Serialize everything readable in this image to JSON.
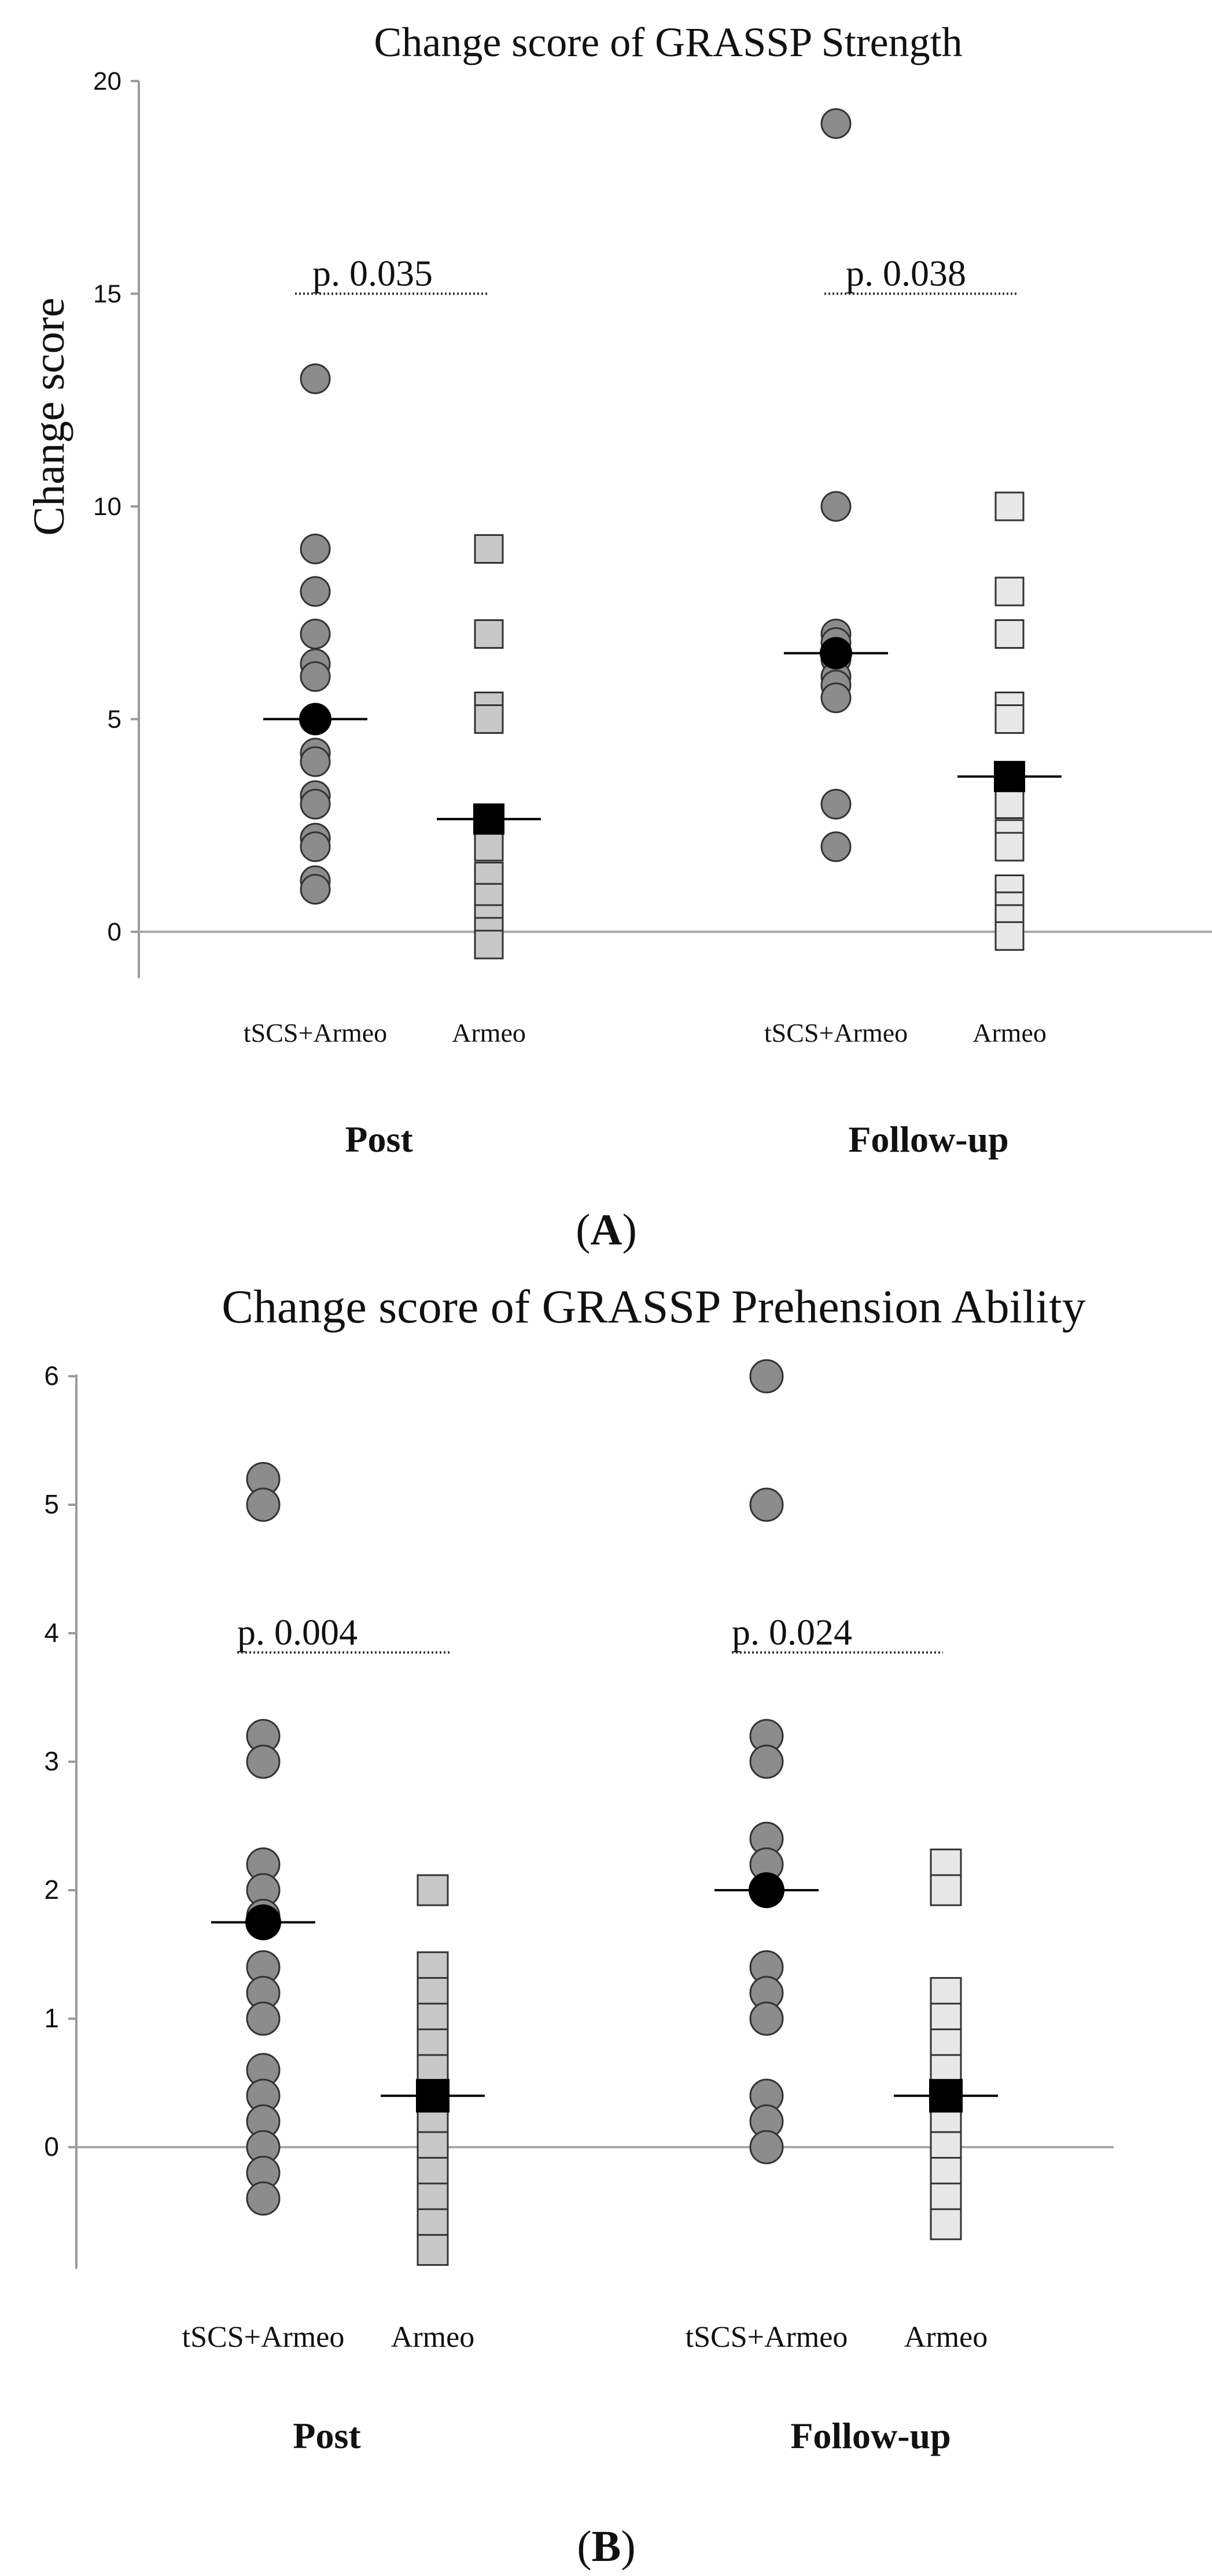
{
  "figure": {
    "panel_a_label": "(A)",
    "panel_b_label": "(B)"
  },
  "chart_data": [
    {
      "type": "scatter",
      "panel": "A",
      "title": "Change score of GRASSP Strength",
      "ylabel": "Change score",
      "xlabel": "",
      "ylim": [
        -1,
        20
      ],
      "yticks": [
        0,
        5,
        10,
        15,
        20
      ],
      "group_labels": [
        "Post",
        "Follow-up"
      ],
      "category_labels": [
        "tSCS+Armeo",
        "Armeo",
        "tSCS+Armeo",
        "Armeo"
      ],
      "annotations": [
        {
          "text": "p. 0.035",
          "group": "Post",
          "y": 15
        },
        {
          "text": "p. 0.038",
          "group": "Follow-up",
          "y": 15
        }
      ],
      "series": [
        {
          "name": "tSCS+Armeo (Post)",
          "marker": "circle",
          "color": "#8c8c8c",
          "category": 0,
          "values": [
            13,
            9,
            8,
            7,
            6.3,
            6,
            5,
            4.2,
            4,
            3.2,
            3,
            2.2,
            2,
            1.2,
            1
          ]
        },
        {
          "name": "Armeo (Post)",
          "marker": "square",
          "color": "#c8c8c8",
          "category": 1,
          "values": [
            9,
            7,
            5.3,
            5,
            2.3,
            2,
            1.3,
            0.8,
            0.3,
            0,
            -0.3
          ]
        },
        {
          "name": "tSCS+Armeo (Follow-up)",
          "marker": "circle",
          "color": "#8c8c8c",
          "category": 2,
          "values": [
            19,
            10,
            7,
            6.8,
            6.4,
            6,
            5.8,
            5.5,
            3,
            2
          ]
        },
        {
          "name": "Armeo (Follow-up)",
          "marker": "square",
          "color": "#e8e8e8",
          "category": 3,
          "values": [
            10,
            8,
            7,
            5.3,
            5,
            3,
            2.3,
            2,
            1,
            0.6,
            0.3,
            -0.1
          ]
        }
      ],
      "means": [
        {
          "category": 0,
          "value": 5.0,
          "marker": "circle"
        },
        {
          "category": 1,
          "value": 2.65,
          "marker": "square"
        },
        {
          "category": 2,
          "value": 6.55,
          "marker": "circle"
        },
        {
          "category": 3,
          "value": 3.65,
          "marker": "square"
        }
      ]
    },
    {
      "type": "scatter",
      "panel": "B",
      "title": "Change score of GRASSP Prehension Ability",
      "ylabel": "",
      "xlabel": "",
      "ylim": [
        -0.95,
        6
      ],
      "yticks": [
        0,
        1,
        2,
        3,
        4,
        5,
        6
      ],
      "group_labels": [
        "Post",
        "Follow-up"
      ],
      "category_labels": [
        "tSCS+Armeo",
        "Armeo",
        "tSCS+Armeo",
        "Armeo"
      ],
      "annotations": [
        {
          "text": "p. 0.004",
          "group": "Post",
          "y": 3.85
        },
        {
          "text": "p. 0.024",
          "group": "Follow-up",
          "y": 3.85
        }
      ],
      "series": [
        {
          "name": "tSCS+Armeo (Post)",
          "marker": "circle",
          "color": "#8c8c8c",
          "category": 0,
          "values": [
            5.2,
            5,
            3.2,
            3,
            2.2,
            2,
            1.8,
            1.4,
            1.2,
            1,
            0.6,
            0.4,
            0.2,
            0,
            -0.2,
            -0.4
          ]
        },
        {
          "name": "Armeo (Post)",
          "marker": "square",
          "color": "#c8c8c8",
          "category": 1,
          "values": [
            2,
            1.4,
            1.2,
            1,
            0.8,
            0.6,
            0.4,
            0.2,
            0,
            -0.2,
            -0.4,
            -0.6,
            -0.8
          ]
        },
        {
          "name": "tSCS+Armeo (Follow-up)",
          "marker": "circle",
          "color": "#8c8c8c",
          "category": 2,
          "values": [
            6,
            5,
            3.2,
            3,
            2.4,
            2.2,
            2,
            1.4,
            1.2,
            1,
            0.4,
            0.2,
            0
          ]
        },
        {
          "name": "Armeo (Follow-up)",
          "marker": "square",
          "color": "#e8e8e8",
          "category": 3,
          "values": [
            2.2,
            2,
            1.2,
            1,
            0.8,
            0.6,
            0.4,
            0.2,
            0,
            -0.2,
            -0.4,
            -0.6
          ]
        }
      ],
      "means": [
        {
          "category": 0,
          "value": 1.75,
          "marker": "circle"
        },
        {
          "category": 1,
          "value": 0.4,
          "marker": "square"
        },
        {
          "category": 2,
          "value": 2.0,
          "marker": "circle"
        },
        {
          "category": 3,
          "value": 0.4,
          "marker": "square"
        }
      ]
    }
  ]
}
